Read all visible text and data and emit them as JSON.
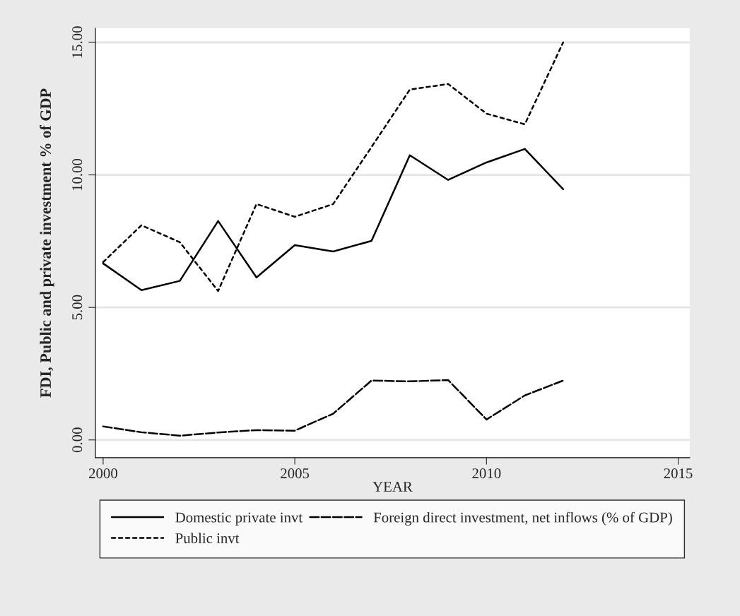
{
  "chart_data": {
    "type": "line",
    "xlabel": "YEAR",
    "ylabel": "FDI, Public and private investment % of GDP",
    "x": [
      2000,
      2001,
      2002,
      2003,
      2004,
      2005,
      2006,
      2007,
      2008,
      2009,
      2010,
      2011,
      2012
    ],
    "series": [
      {
        "name": "Domestic private invt",
        "color": "#000000",
        "line_style": "solid",
        "values": [
          6.66,
          5.65,
          6.0,
          8.26,
          6.13,
          7.35,
          7.11,
          7.51,
          10.74,
          9.81,
          10.47,
          10.98,
          9.46
        ]
      },
      {
        "name": "Foreign direct investment, net inflows (% of GDP)",
        "color": "#000000",
        "line_style": "dashed",
        "values": [
          0.51,
          0.29,
          0.16,
          0.28,
          0.37,
          0.35,
          0.99,
          2.24,
          2.21,
          2.26,
          0.77,
          1.68,
          2.24
        ]
      },
      {
        "name": "Public invt",
        "color": "#000000",
        "line_style": "dotted",
        "values": [
          6.71,
          8.1,
          7.46,
          5.62,
          8.9,
          8.42,
          8.9,
          11.05,
          13.22,
          13.43,
          12.31,
          11.91,
          15.0
        ]
      }
    ],
    "xlim": [
      1999.8,
      2015.3
    ],
    "xticks": [
      2000,
      2005,
      2010,
      2015
    ],
    "ylim": [
      -0.67,
      15.53
    ],
    "yticks": [
      {
        "value": 0,
        "label": "0.00"
      },
      {
        "value": 5,
        "label": "5.00"
      },
      {
        "value": 10,
        "label": "10.00"
      },
      {
        "value": 15,
        "label": "15.00"
      }
    ],
    "grid": "y",
    "legend": "bottom",
    "marker": "none"
  }
}
